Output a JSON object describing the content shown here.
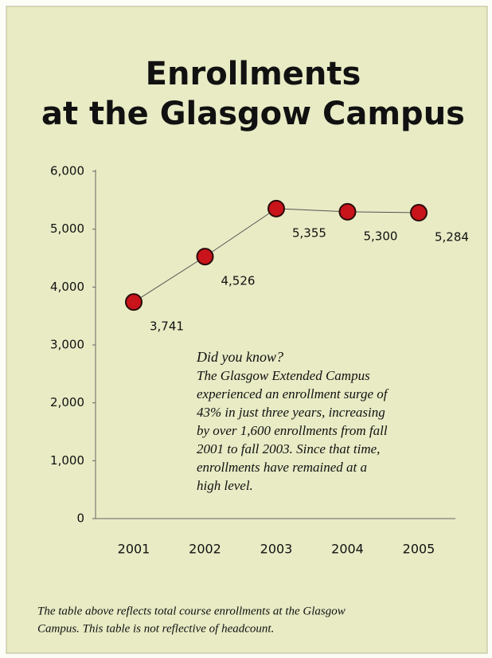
{
  "chart_data": {
    "type": "line",
    "title_lines": [
      "Enrollments",
      "at the Glasgow Campus"
    ],
    "categories": [
      "2001",
      "2002",
      "2003",
      "2004",
      "2005"
    ],
    "values": [
      3741,
      4526,
      5355,
      5300,
      5284
    ],
    "value_labels": [
      "3,741",
      "4,526",
      "5,355",
      "5,300",
      "5,284"
    ],
    "color": "#c8141a",
    "ylim": [
      0,
      6000
    ],
    "yticks": [
      0,
      {
        "value": 1000,
        "label": "1,000"
      },
      {
        "value": 2000,
        "label": "2,000"
      },
      {
        "value": 3000,
        "label": "3,000"
      },
      {
        "value": 4000,
        "label": "4,000"
      },
      {
        "value": 5000,
        "label": "5,000"
      },
      {
        "value": 6000,
        "label": "6,000"
      }
    ],
    "annotation": {
      "heading": "Did you know?",
      "lines": [
        "The Glasgow Extended Campus",
        "experienced an enrollment surge of",
        "43% in just three years, increasing",
        "by over 1,600 enrollments from fall",
        "2001 to fall 2003.  Since that time,",
        "enrollments have remained at a",
        "high level."
      ]
    },
    "footnote_lines": [
      "The table above reflects total course enrollments at the Glasgow",
      "Campus.  This table is not reflective of headcount."
    ]
  }
}
